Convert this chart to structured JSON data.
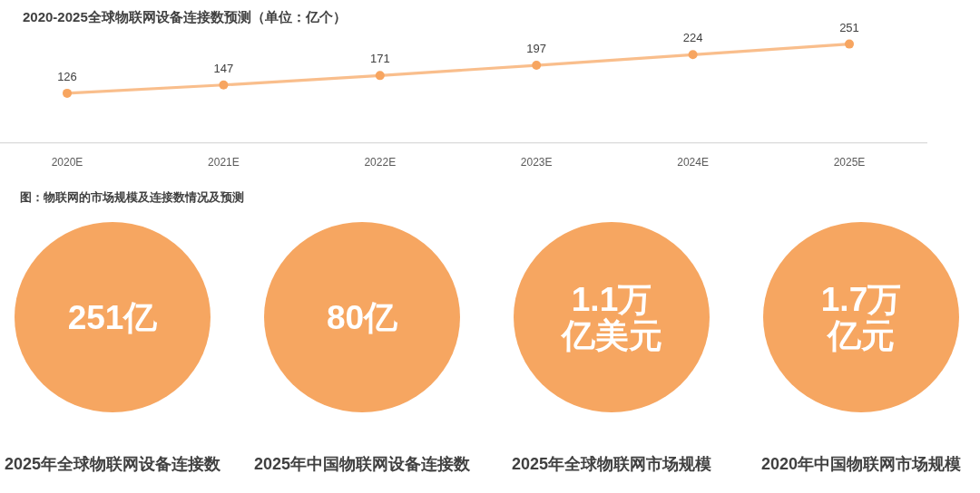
{
  "chart_data": [
    {
      "type": "line",
      "title": "2020-2025全球物联网设备连接数预测（单位：亿个）",
      "categories": [
        "2020E",
        "2021E",
        "2022E",
        "2023E",
        "2024E",
        "2025E"
      ],
      "values": [
        126,
        147,
        171,
        197,
        224,
        251
      ],
      "color": "#f7a560",
      "tick_labels": "x",
      "data_labels": true,
      "marker": "circle",
      "line_style": "solid"
    },
    {
      "type": "other",
      "title": "图：物联网的市场规模及连接数情况及预测",
      "categories": [
        "2025年全球物联网设备连接数",
        "2025年中国物联网设备连接数",
        "2025年全球物联网市场规模",
        "2020年中国物联网市场规模"
      ],
      "value_labels": [
        "251亿",
        "80亿",
        "1.1万亿美元",
        "1.7万亿元"
      ],
      "color": "#f6a661"
    }
  ]
}
